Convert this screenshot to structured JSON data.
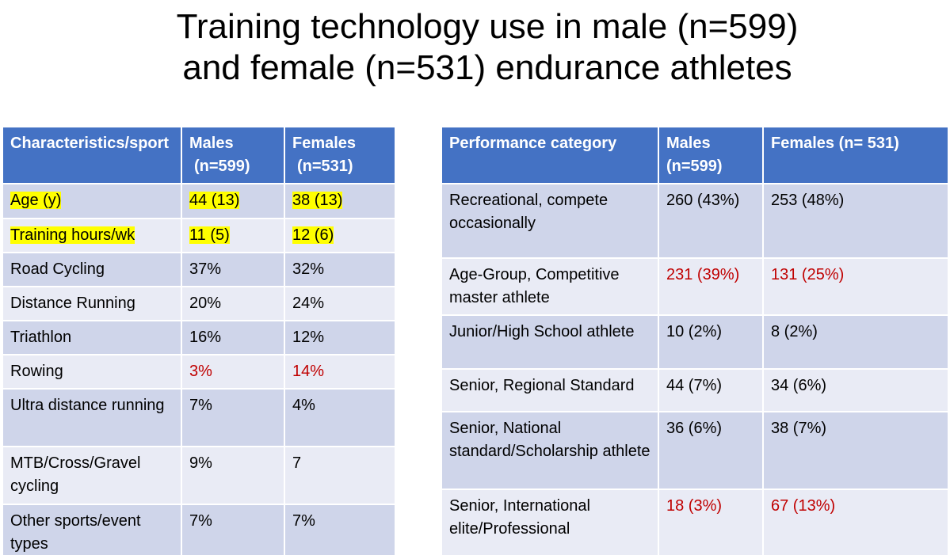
{
  "title": {
    "line1": "Training technology use in male (n=599)",
    "line2": "and female (n=531) endurance athletes"
  },
  "left_table": {
    "headers": {
      "col1": "Characteristics/sport",
      "col2_line1": "Males",
      "col2_line2": "(n=599)",
      "col3_line1": "Females",
      "col3_line2": "(n=531)"
    },
    "rows": [
      {
        "label": "Age (y)",
        "males": "44 (13)",
        "females": "38 (13)"
      },
      {
        "label": "Training hours/wk",
        "males": "11 (5)",
        "females": "12 (6)"
      },
      {
        "label": "Road Cycling",
        "males": "37%",
        "females": "32%"
      },
      {
        "label": "Distance Running",
        "males": "20%",
        "females": "24%"
      },
      {
        "label": "Triathlon",
        "males": "16%",
        "females": "12%"
      },
      {
        "label": "Rowing",
        "males": "3%",
        "females": "14%"
      },
      {
        "label": "Ultra distance running",
        "males": "7%",
        "females": "4%"
      },
      {
        "label": "MTB/Cross/Gravel cycling",
        "males": "9%",
        "females": "7"
      },
      {
        "label": "Other sports/event types",
        "males": "7%",
        "females": "7%"
      }
    ]
  },
  "right_table": {
    "headers": {
      "col1": "Performance category",
      "col2_line1": "Males",
      "col2_line2": "(n=599)",
      "col3": "Females (n= 531)"
    },
    "rows": [
      {
        "label": "Recreational, compete occasionally",
        "males": "260 (43%)",
        "females": "253 (48%)"
      },
      {
        "label": "Age-Group, Competitive master athlete",
        "males": "231 (39%)",
        "females": "131 (25%)"
      },
      {
        "label": "Junior/High School athlete",
        "males": "10 (2%)",
        "females": "8 (2%)"
      },
      {
        "label": "Senior, Regional Standard",
        "males": "44 (7%)",
        "females": "34 (6%)"
      },
      {
        "label": "Senior, National standard/Scholarship athlete",
        "males": "36 (6%)",
        "females": "38 (7%)"
      },
      {
        "label": "Senior, International elite/Professional",
        "males": "18 (3%)",
        "females": "67 (13%)"
      }
    ]
  },
  "colors": {
    "header_bg": "#4472c4",
    "row_odd": "#cfd5ea",
    "row_even": "#e9ebf5",
    "highlight": "#ffff00",
    "emphasis_red": "#c00000"
  }
}
